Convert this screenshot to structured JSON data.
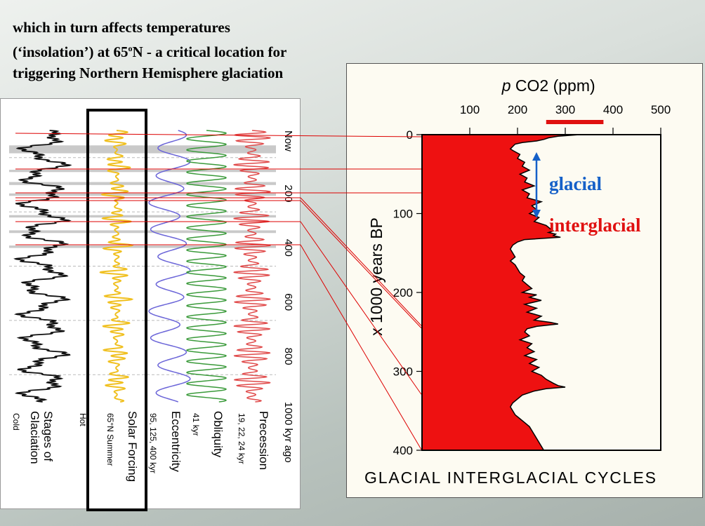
{
  "heading": {
    "line1": "which in turn affects temperatures",
    "line2_a": "(‘insolation’) at 65",
    "line2_sup": "o",
    "line2_b": "N - a critical location for",
    "line3": "triggering Northern Hemisphere glaciation"
  },
  "colors": {
    "glaciation": "#111111",
    "solar": "#f0c020",
    "eccentricity": "#6a64d8",
    "obliquity": "#3a9a3a",
    "precession": "#e04a4a",
    "co2_fill": "#ee1111",
    "connector": "#dd0000",
    "highlight_box": "#000000",
    "glacial_label": "#1560c8",
    "interglacial_label": "#e01010"
  },
  "forcing_panel": {
    "time_ticks": [
      "Now",
      "200",
      "400",
      "600",
      "800",
      "1000 kyr ago"
    ],
    "columns": [
      {
        "key": "glaciation",
        "label": "Stages of Glaciation",
        "sub_left": "Cold",
        "sub_right": "Hot"
      },
      {
        "key": "solar",
        "label": "Solar Forcing",
        "sub": "65°N Summer"
      },
      {
        "key": "eccentricity",
        "label": "Eccentricity",
        "sub": "95, 125, 400 kyr"
      },
      {
        "key": "obliquity",
        "label": "Obliquity",
        "sub": "41 kyr"
      },
      {
        "key": "precession",
        "label": "Precession",
        "sub": "19, 22, 24 kyr"
      }
    ],
    "periods_kyr": {
      "eccentricity": 100,
      "obliquity": 41,
      "precession": 22
    }
  },
  "chart_data": {
    "type": "area",
    "title": "GLACIAL INTERGLACIAL CYCLES",
    "xlabel_italic": "p",
    "xlabel": "CO2 (ppm)",
    "ylabel": "x 1000 years BP",
    "xlim": [
      0,
      500
    ],
    "ylim": [
      0,
      400
    ],
    "x_ticks": [
      100,
      200,
      300,
      400,
      500
    ],
    "y_ticks": [
      0,
      100,
      200,
      300,
      400
    ],
    "series": [
      {
        "name": "CO2",
        "age_kyr": [
          0,
          2,
          4,
          6,
          8,
          10,
          12,
          15,
          18,
          20,
          25,
          30,
          35,
          40,
          45,
          50,
          55,
          60,
          65,
          70,
          75,
          80,
          85,
          90,
          95,
          100,
          105,
          110,
          115,
          120,
          122,
          124,
          126,
          128,
          130,
          133,
          136,
          140,
          145,
          150,
          155,
          160,
          165,
          170,
          175,
          180,
          185,
          190,
          195,
          200,
          203,
          206,
          210,
          215,
          220,
          225,
          230,
          235,
          238,
          240,
          243,
          246,
          250,
          255,
          260,
          265,
          270,
          275,
          280,
          285,
          290,
          295,
          300,
          305,
          310,
          315,
          318,
          320,
          322,
          325,
          330,
          335,
          340,
          345,
          350,
          355,
          360,
          365,
          370,
          375,
          380,
          385,
          390,
          395,
          400,
          405,
          410
        ],
        "co2_ppm": [
          330,
          285,
          265,
          255,
          240,
          210,
          195,
          190,
          185,
          190,
          205,
          200,
          215,
          210,
          225,
          205,
          220,
          215,
          235,
          210,
          225,
          220,
          250,
          230,
          240,
          225,
          245,
          235,
          260,
          270,
          275,
          265,
          280,
          275,
          290,
          215,
          200,
          190,
          185,
          190,
          195,
          185,
          195,
          200,
          205,
          215,
          210,
          220,
          230,
          210,
          240,
          225,
          250,
          215,
          240,
          220,
          250,
          235,
          270,
          285,
          240,
          220,
          215,
          225,
          205,
          230,
          220,
          235,
          215,
          240,
          225,
          245,
          230,
          250,
          260,
          275,
          285,
          300,
          260,
          235,
          210,
          200,
          190,
          185,
          190,
          195,
          205,
          215,
          225,
          230,
          235,
          240,
          245,
          250,
          255,
          270,
          285
        ]
      }
    ],
    "interglacial_range_ppm": [
      260,
      380
    ],
    "annotations": {
      "glacial": "glacial",
      "interglacial": "interglacial"
    }
  }
}
